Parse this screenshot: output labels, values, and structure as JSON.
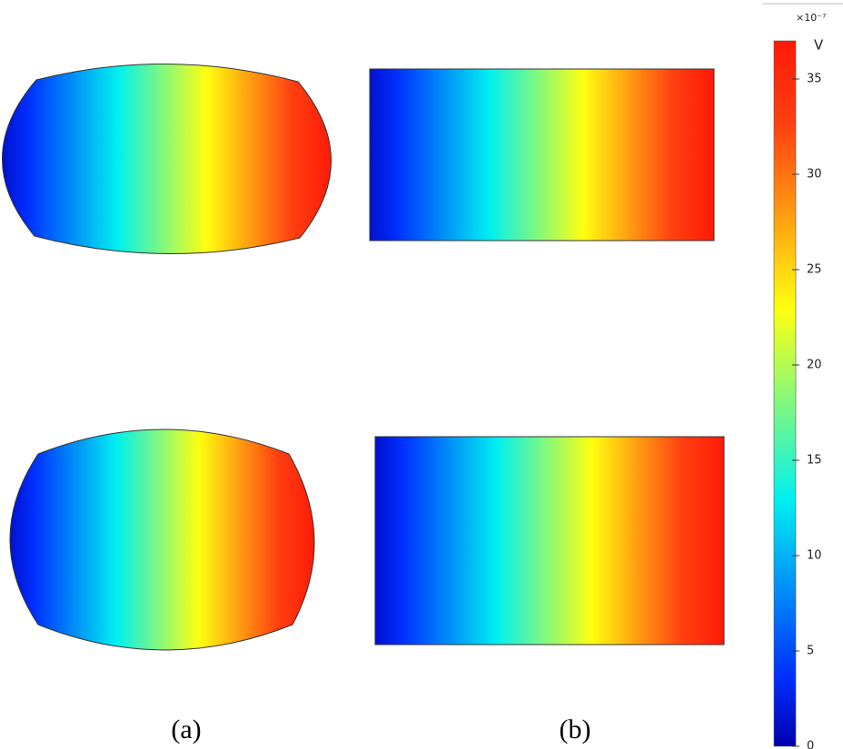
{
  "labels": [
    "(a)",
    "(b)"
  ],
  "colorbar": {
    "multiplier": "×10⁻⁷",
    "unit": "V",
    "range": [
      0,
      37
    ],
    "ticks": [
      0,
      5,
      10,
      15,
      20,
      25,
      30,
      35
    ]
  }
}
